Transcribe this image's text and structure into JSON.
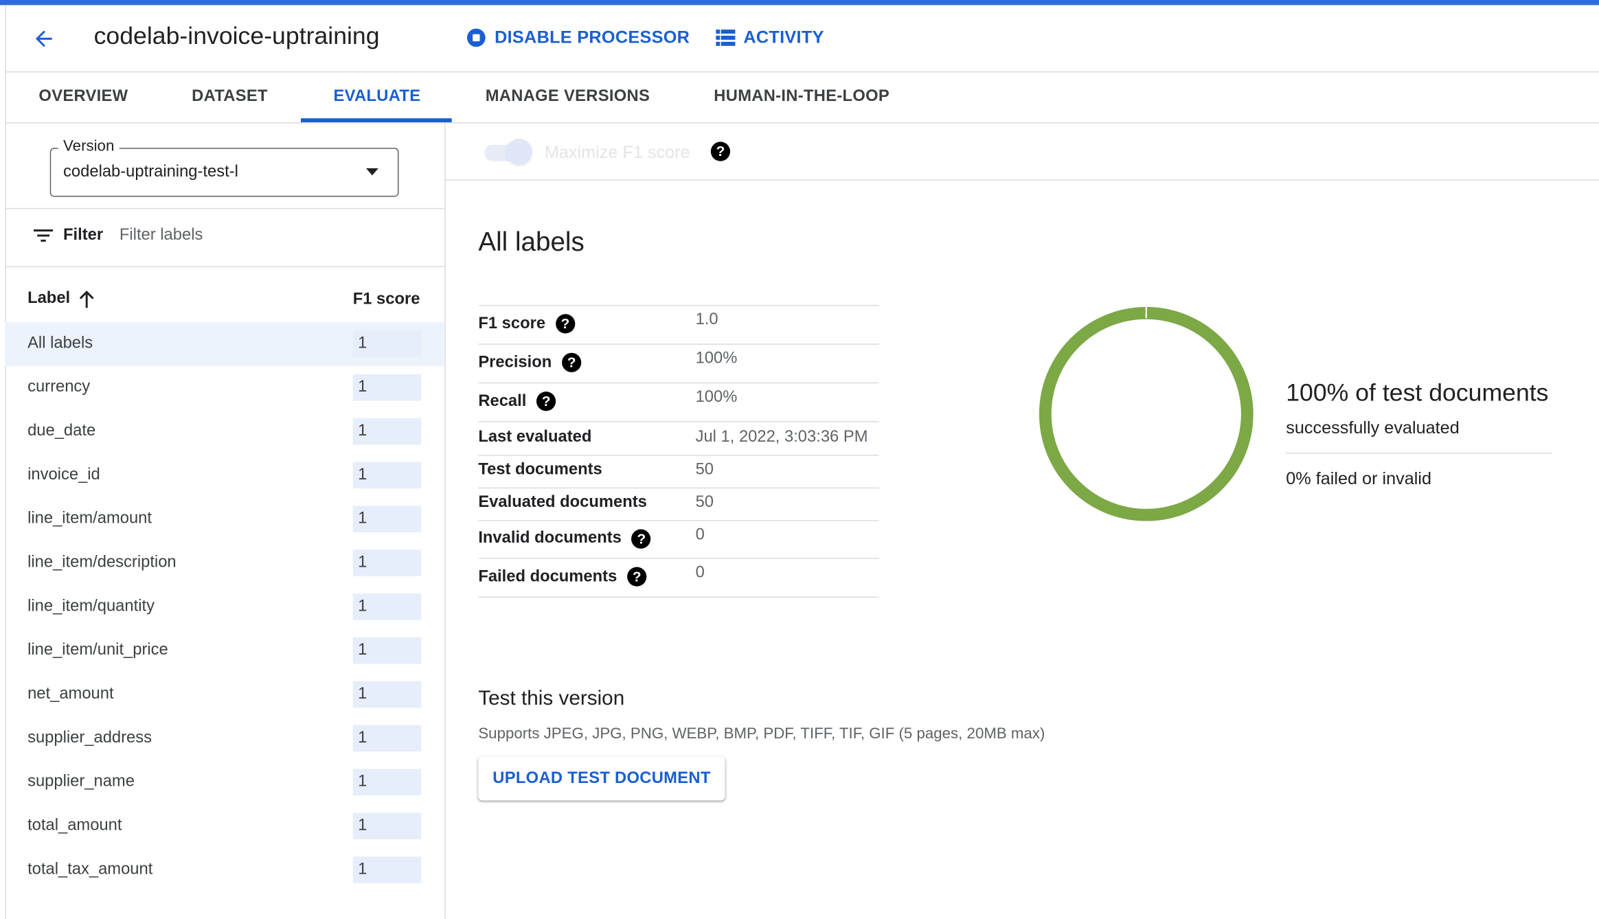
{
  "header": {
    "title": "codelab-invoice-uptraining",
    "disable_processor": "DISABLE PROCESSOR",
    "activity": "ACTIVITY"
  },
  "tabs": [
    {
      "label": "OVERVIEW"
    },
    {
      "label": "DATASET"
    },
    {
      "label": "EVALUATE",
      "active": true
    },
    {
      "label": "MANAGE VERSIONS"
    },
    {
      "label": "HUMAN-IN-THE-LOOP"
    }
  ],
  "sidebar": {
    "version_label": "Version",
    "version_value": "codelab-uptraining-test-l",
    "filter_label": "Filter",
    "filter_placeholder": "Filter labels",
    "col_label": "Label",
    "col_score": "F1 score",
    "rows": [
      {
        "label": "All labels",
        "score": "1"
      },
      {
        "label": "currency",
        "score": "1"
      },
      {
        "label": "due_date",
        "score": "1"
      },
      {
        "label": "invoice_id",
        "score": "1"
      },
      {
        "label": "line_item/amount",
        "score": "1"
      },
      {
        "label": "line_item/description",
        "score": "1"
      },
      {
        "label": "line_item/quantity",
        "score": "1"
      },
      {
        "label": "line_item/unit_price",
        "score": "1"
      },
      {
        "label": "net_amount",
        "score": "1"
      },
      {
        "label": "supplier_address",
        "score": "1"
      },
      {
        "label": "supplier_name",
        "score": "1"
      },
      {
        "label": "total_amount",
        "score": "1"
      },
      {
        "label": "total_tax_amount",
        "score": "1"
      }
    ]
  },
  "main": {
    "toggle_label": "Maximize F1 score",
    "toggle_on": false,
    "heading": "All labels",
    "metrics": [
      {
        "label": "F1 score",
        "value": "1.0",
        "help": true
      },
      {
        "label": "Precision",
        "value": "100%",
        "help": true
      },
      {
        "label": "Recall",
        "value": "100%",
        "help": true
      },
      {
        "label": "Last evaluated",
        "value": "Jul 1, 2022, 3:03:36 PM",
        "help": false
      },
      {
        "label": "Test documents",
        "value": "50",
        "help": false
      },
      {
        "label": "Evaluated documents",
        "value": "50",
        "help": false
      },
      {
        "label": "Invalid documents",
        "value": "0",
        "help": true
      },
      {
        "label": "Failed documents",
        "value": "0",
        "help": true
      }
    ],
    "donut": {
      "success_percent": 100,
      "color": "#7ca846"
    },
    "summary_title": "100% of test documents",
    "summary_sub": "successfully evaluated",
    "summary_failed": "0% failed or invalid",
    "test_heading": "Test this version",
    "test_support": "Supports JPEG, JPG, PNG, WEBP, BMP, PDF, TIFF, TIF, GIF (5 pages, 20MB max)",
    "upload_button": "UPLOAD TEST DOCUMENT"
  },
  "help_glyph": "?",
  "colors": {
    "accent": "#1a5fd0",
    "topbar": "#2f6bdc",
    "selected_row": "#edf3fd"
  }
}
